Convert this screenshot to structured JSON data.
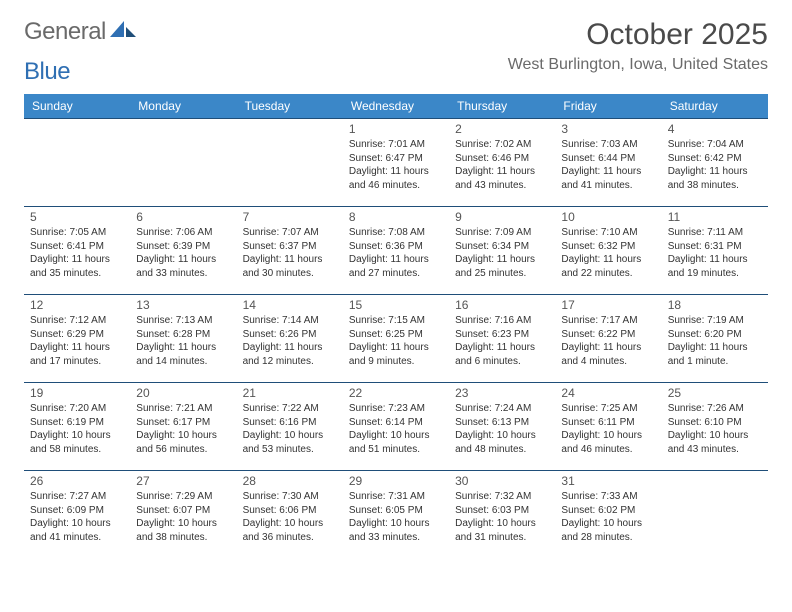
{
  "brand": {
    "part1": "General",
    "part2": "Blue"
  },
  "title": {
    "month": "October 2025",
    "location": "West Burlington, Iowa, United States"
  },
  "colors": {
    "header_bg": "#3b87c8",
    "header_text": "#ffffff",
    "row_border": "#1f4e79",
    "page_bg": "#ffffff",
    "text": "#333333",
    "logo_gray": "#6a6a6a",
    "logo_blue": "#2f6fb3"
  },
  "weekdays": [
    "Sunday",
    "Monday",
    "Tuesday",
    "Wednesday",
    "Thursday",
    "Friday",
    "Saturday"
  ],
  "weeks": [
    [
      {
        "day": "",
        "sunrise": "",
        "sunset": "",
        "daylight": ""
      },
      {
        "day": "",
        "sunrise": "",
        "sunset": "",
        "daylight": ""
      },
      {
        "day": "",
        "sunrise": "",
        "sunset": "",
        "daylight": ""
      },
      {
        "day": "1",
        "sunrise": "Sunrise: 7:01 AM",
        "sunset": "Sunset: 6:47 PM",
        "daylight": "Daylight: 11 hours and 46 minutes."
      },
      {
        "day": "2",
        "sunrise": "Sunrise: 7:02 AM",
        "sunset": "Sunset: 6:46 PM",
        "daylight": "Daylight: 11 hours and 43 minutes."
      },
      {
        "day": "3",
        "sunrise": "Sunrise: 7:03 AM",
        "sunset": "Sunset: 6:44 PM",
        "daylight": "Daylight: 11 hours and 41 minutes."
      },
      {
        "day": "4",
        "sunrise": "Sunrise: 7:04 AM",
        "sunset": "Sunset: 6:42 PM",
        "daylight": "Daylight: 11 hours and 38 minutes."
      }
    ],
    [
      {
        "day": "5",
        "sunrise": "Sunrise: 7:05 AM",
        "sunset": "Sunset: 6:41 PM",
        "daylight": "Daylight: 11 hours and 35 minutes."
      },
      {
        "day": "6",
        "sunrise": "Sunrise: 7:06 AM",
        "sunset": "Sunset: 6:39 PM",
        "daylight": "Daylight: 11 hours and 33 minutes."
      },
      {
        "day": "7",
        "sunrise": "Sunrise: 7:07 AM",
        "sunset": "Sunset: 6:37 PM",
        "daylight": "Daylight: 11 hours and 30 minutes."
      },
      {
        "day": "8",
        "sunrise": "Sunrise: 7:08 AM",
        "sunset": "Sunset: 6:36 PM",
        "daylight": "Daylight: 11 hours and 27 minutes."
      },
      {
        "day": "9",
        "sunrise": "Sunrise: 7:09 AM",
        "sunset": "Sunset: 6:34 PM",
        "daylight": "Daylight: 11 hours and 25 minutes."
      },
      {
        "day": "10",
        "sunrise": "Sunrise: 7:10 AM",
        "sunset": "Sunset: 6:32 PM",
        "daylight": "Daylight: 11 hours and 22 minutes."
      },
      {
        "day": "11",
        "sunrise": "Sunrise: 7:11 AM",
        "sunset": "Sunset: 6:31 PM",
        "daylight": "Daylight: 11 hours and 19 minutes."
      }
    ],
    [
      {
        "day": "12",
        "sunrise": "Sunrise: 7:12 AM",
        "sunset": "Sunset: 6:29 PM",
        "daylight": "Daylight: 11 hours and 17 minutes."
      },
      {
        "day": "13",
        "sunrise": "Sunrise: 7:13 AM",
        "sunset": "Sunset: 6:28 PM",
        "daylight": "Daylight: 11 hours and 14 minutes."
      },
      {
        "day": "14",
        "sunrise": "Sunrise: 7:14 AM",
        "sunset": "Sunset: 6:26 PM",
        "daylight": "Daylight: 11 hours and 12 minutes."
      },
      {
        "day": "15",
        "sunrise": "Sunrise: 7:15 AM",
        "sunset": "Sunset: 6:25 PM",
        "daylight": "Daylight: 11 hours and 9 minutes."
      },
      {
        "day": "16",
        "sunrise": "Sunrise: 7:16 AM",
        "sunset": "Sunset: 6:23 PM",
        "daylight": "Daylight: 11 hours and 6 minutes."
      },
      {
        "day": "17",
        "sunrise": "Sunrise: 7:17 AM",
        "sunset": "Sunset: 6:22 PM",
        "daylight": "Daylight: 11 hours and 4 minutes."
      },
      {
        "day": "18",
        "sunrise": "Sunrise: 7:19 AM",
        "sunset": "Sunset: 6:20 PM",
        "daylight": "Daylight: 11 hours and 1 minute."
      }
    ],
    [
      {
        "day": "19",
        "sunrise": "Sunrise: 7:20 AM",
        "sunset": "Sunset: 6:19 PM",
        "daylight": "Daylight: 10 hours and 58 minutes."
      },
      {
        "day": "20",
        "sunrise": "Sunrise: 7:21 AM",
        "sunset": "Sunset: 6:17 PM",
        "daylight": "Daylight: 10 hours and 56 minutes."
      },
      {
        "day": "21",
        "sunrise": "Sunrise: 7:22 AM",
        "sunset": "Sunset: 6:16 PM",
        "daylight": "Daylight: 10 hours and 53 minutes."
      },
      {
        "day": "22",
        "sunrise": "Sunrise: 7:23 AM",
        "sunset": "Sunset: 6:14 PM",
        "daylight": "Daylight: 10 hours and 51 minutes."
      },
      {
        "day": "23",
        "sunrise": "Sunrise: 7:24 AM",
        "sunset": "Sunset: 6:13 PM",
        "daylight": "Daylight: 10 hours and 48 minutes."
      },
      {
        "day": "24",
        "sunrise": "Sunrise: 7:25 AM",
        "sunset": "Sunset: 6:11 PM",
        "daylight": "Daylight: 10 hours and 46 minutes."
      },
      {
        "day": "25",
        "sunrise": "Sunrise: 7:26 AM",
        "sunset": "Sunset: 6:10 PM",
        "daylight": "Daylight: 10 hours and 43 minutes."
      }
    ],
    [
      {
        "day": "26",
        "sunrise": "Sunrise: 7:27 AM",
        "sunset": "Sunset: 6:09 PM",
        "daylight": "Daylight: 10 hours and 41 minutes."
      },
      {
        "day": "27",
        "sunrise": "Sunrise: 7:29 AM",
        "sunset": "Sunset: 6:07 PM",
        "daylight": "Daylight: 10 hours and 38 minutes."
      },
      {
        "day": "28",
        "sunrise": "Sunrise: 7:30 AM",
        "sunset": "Sunset: 6:06 PM",
        "daylight": "Daylight: 10 hours and 36 minutes."
      },
      {
        "day": "29",
        "sunrise": "Sunrise: 7:31 AM",
        "sunset": "Sunset: 6:05 PM",
        "daylight": "Daylight: 10 hours and 33 minutes."
      },
      {
        "day": "30",
        "sunrise": "Sunrise: 7:32 AM",
        "sunset": "Sunset: 6:03 PM",
        "daylight": "Daylight: 10 hours and 31 minutes."
      },
      {
        "day": "31",
        "sunrise": "Sunrise: 7:33 AM",
        "sunset": "Sunset: 6:02 PM",
        "daylight": "Daylight: 10 hours and 28 minutes."
      },
      {
        "day": "",
        "sunrise": "",
        "sunset": "",
        "daylight": ""
      }
    ]
  ]
}
